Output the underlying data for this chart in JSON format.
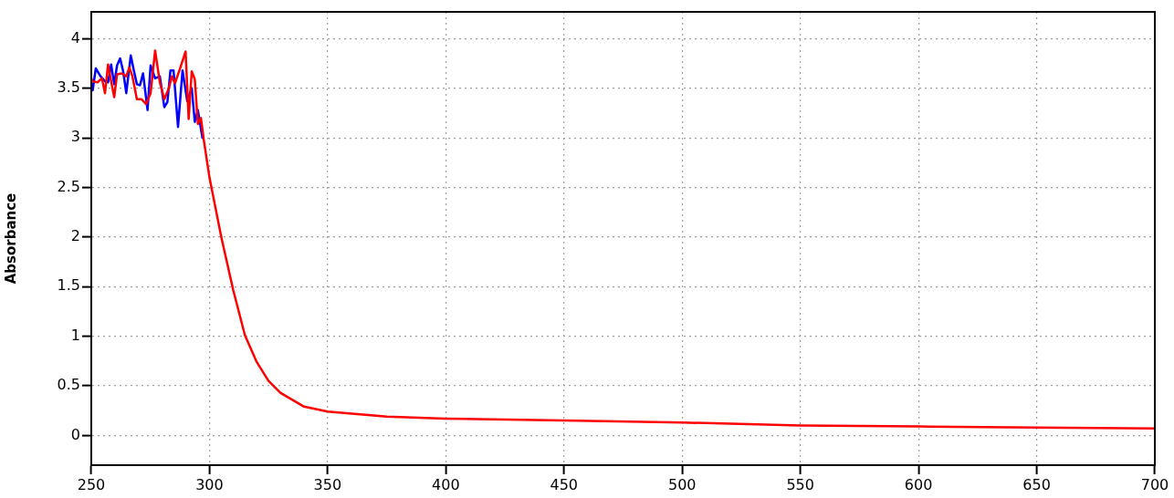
{
  "chart_data": {
    "type": "line",
    "ylabel": "Absorbance",
    "xlim": [
      250,
      700
    ],
    "ylim": [
      -0.3,
      4.27
    ],
    "xticks": [
      250,
      300,
      350,
      400,
      450,
      500,
      550,
      600,
      650,
      700
    ],
    "yticks": [
      0,
      0.5,
      1,
      1.5,
      2,
      2.5,
      3,
      3.5,
      4
    ],
    "grid": true,
    "legend": false,
    "marker": "none",
    "line_style": "solid",
    "series": [
      {
        "color": "#0000ff",
        "x": [
          250,
          250.6,
          251.9,
          253.9,
          255.8,
          257.1,
          258.4,
          259.7,
          260.9,
          262.2,
          263.5,
          264.8,
          266.7,
          268.0,
          269.3,
          270.6,
          271.9,
          273.8,
          275.1,
          277.0,
          279.0,
          280.9,
          282.2,
          283.5,
          284.8,
          286.7,
          288.6,
          290.6,
          292.5,
          293.8,
          295.1,
          297.0
        ],
        "values": [
          3.55,
          3.48,
          3.7,
          3.62,
          3.57,
          3.56,
          3.74,
          3.54,
          3.73,
          3.8,
          3.67,
          3.45,
          3.83,
          3.68,
          3.54,
          3.53,
          3.65,
          3.28,
          3.73,
          3.6,
          3.62,
          3.31,
          3.36,
          3.68,
          3.68,
          3.11,
          3.68,
          3.37,
          3.5,
          3.16,
          3.28,
          3.0
        ]
      },
      {
        "color": "#ff0000",
        "x": [
          250,
          250.6,
          252.6,
          254.5,
          255.8,
          257.1,
          258.4,
          259.7,
          260.9,
          262.9,
          264.8,
          266.1,
          267.4,
          269.3,
          271.2,
          273.2,
          275.1,
          277.0,
          279.0,
          280.9,
          282.8,
          284.1,
          285.4,
          287.3,
          289.9,
          291.2,
          292.5,
          293.8,
          295.1,
          296.4,
          297.6,
          300,
          305,
          310,
          315,
          320,
          325,
          330,
          340,
          350,
          375,
          400,
          450,
          500,
          550,
          600,
          650,
          700
        ],
        "values": [
          3.6,
          3.57,
          3.56,
          3.6,
          3.45,
          3.74,
          3.57,
          3.41,
          3.64,
          3.65,
          3.62,
          3.71,
          3.62,
          3.39,
          3.39,
          3.34,
          3.45,
          3.88,
          3.56,
          3.39,
          3.5,
          3.62,
          3.55,
          3.68,
          3.87,
          3.19,
          3.67,
          3.59,
          3.14,
          3.2,
          2.98,
          2.6,
          2.0,
          1.47,
          1.01,
          0.74,
          0.55,
          0.43,
          0.29,
          0.24,
          0.19,
          0.17,
          0.15,
          0.13,
          0.1,
          0.09,
          0.08,
          0.07
        ]
      }
    ]
  }
}
